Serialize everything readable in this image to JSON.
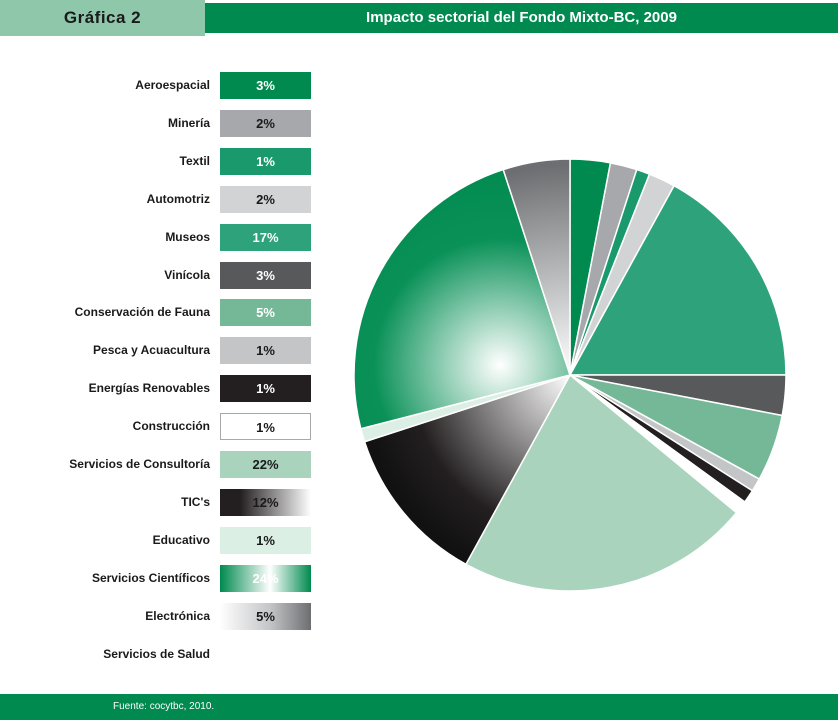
{
  "header": {
    "tag": "Gráfica 2",
    "title": "Impacto sectorial del Fondo Mixto-BC, 2009"
  },
  "footer": {
    "source": "Fuente: cocytbc, 2010."
  },
  "colors": {
    "brand_green": "#008a4f",
    "tag_green": "#8fc7ab"
  },
  "legend": [
    {
      "label": "Aeroespacial",
      "value_text": "3%",
      "style": "solid",
      "color": "#008a4f",
      "text_color": "#ffffff"
    },
    {
      "label": "Minería",
      "value_text": "2%",
      "style": "solid",
      "color": "#a6a8ab",
      "text_color": "#1a1a1a"
    },
    {
      "label": "Textil",
      "value_text": "1%",
      "style": "solid",
      "color": "#1a9a6c",
      "text_color": "#ffffff"
    },
    {
      "label": "Automotriz",
      "value_text": "2%",
      "style": "solid",
      "color": "#d1d3d4",
      "text_color": "#1a1a1a"
    },
    {
      "label": "Museos",
      "value_text": "17%",
      "style": "solid",
      "color": "#2ea27a",
      "text_color": "#ffffff"
    },
    {
      "label": "Vinícola",
      "value_text": "3%",
      "style": "solid",
      "color": "#58595b",
      "text_color": "#ffffff"
    },
    {
      "label": "Conservación de Fauna",
      "value_text": "5%",
      "style": "solid",
      "color": "#74b898",
      "text_color": "#ffffff"
    },
    {
      "label": "Pesca y Acuacultura",
      "value_text": "1%",
      "style": "solid",
      "color": "#c4c5c7",
      "text_color": "#1a1a1a"
    },
    {
      "label": "Energías Renovables",
      "value_text": "1%",
      "style": "solid",
      "color": "#231f20",
      "text_color": "#ffffff"
    },
    {
      "label": "Construcción",
      "value_text": "1%",
      "style": "outline",
      "color": "#ffffff",
      "text_color": "#1a1a1a"
    },
    {
      "label": "Servicios de Consultoría",
      "value_text": "22%",
      "style": "solid",
      "color": "#a9d3bd",
      "text_color": "#1a1a1a"
    },
    {
      "label": "TIC's",
      "value_text": "12%",
      "style": "grad-dark",
      "color": "#231f20",
      "text_color": "#1a1a1a"
    },
    {
      "label": "Educativo",
      "value_text": "1%",
      "style": "solid",
      "color": "#dcefe5",
      "text_color": "#1a1a1a"
    },
    {
      "label": "Servicios Científicos",
      "value_text": "24%",
      "style": "grad-green",
      "color": "#008a4f",
      "text_color": "#ffffff"
    },
    {
      "label": "Electrónica",
      "value_text": "5%",
      "style": "grad-gray",
      "color": "#8a8c8e",
      "text_color": "#1a1a1a"
    },
    {
      "label": "Servicios de Salud",
      "value_text": "",
      "style": "none",
      "color": "",
      "text_color": "#1a1a1a"
    }
  ],
  "chart_data": {
    "type": "pie",
    "title": "Impacto sectorial del Fondo Mixto-BC, 2009",
    "legend_position": "left",
    "start_angle_deg": 0,
    "direction": "clockwise",
    "slices": [
      {
        "name": "Aeroespacial",
        "value": 3,
        "color": "#008a4f",
        "fill": "solid"
      },
      {
        "name": "Minería",
        "value": 2,
        "color": "#a6a8ab",
        "fill": "solid"
      },
      {
        "name": "Textil",
        "value": 1,
        "color": "#1a9a6c",
        "fill": "solid"
      },
      {
        "name": "Automotriz",
        "value": 2,
        "color": "#d1d3d4",
        "fill": "solid"
      },
      {
        "name": "Museos",
        "value": 17,
        "color": "#2ea27a",
        "fill": "solid"
      },
      {
        "name": "Vinícola",
        "value": 3,
        "color": "#58595b",
        "fill": "solid"
      },
      {
        "name": "Conservación de Fauna",
        "value": 5,
        "color": "#74b898",
        "fill": "solid"
      },
      {
        "name": "Pesca y Acuacultura",
        "value": 1,
        "color": "#c4c5c7",
        "fill": "solid"
      },
      {
        "name": "Energías Renovables",
        "value": 1,
        "color": "#231f20",
        "fill": "solid"
      },
      {
        "name": "Construcción",
        "value": 1,
        "color": "#ffffff",
        "fill": "solid"
      },
      {
        "name": "Servicios de Consultoría",
        "value": 22,
        "color": "#a9d3bd",
        "fill": "solid"
      },
      {
        "name": "TIC's",
        "value": 12,
        "color": "#231f20",
        "fill": "grad-dark"
      },
      {
        "name": "Educativo",
        "value": 1,
        "color": "#dcefe5",
        "fill": "solid"
      },
      {
        "name": "Servicios Científicos",
        "value": 24,
        "color": "#008a4f",
        "fill": "grad-green"
      },
      {
        "name": "Electrónica",
        "value": 5,
        "color": "#8a8c8e",
        "fill": "grad-gray"
      }
    ]
  }
}
